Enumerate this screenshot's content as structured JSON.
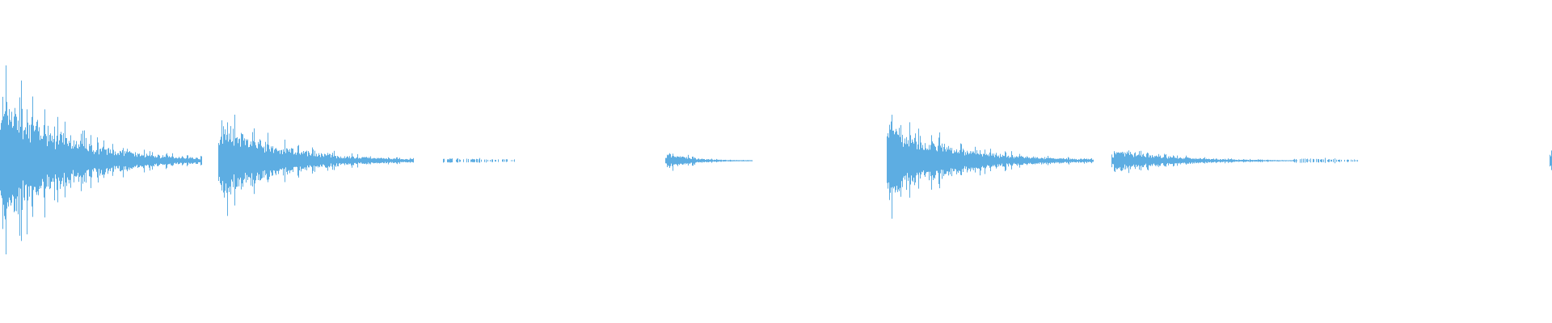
{
  "chart_data": {
    "type": "waveform",
    "title": "",
    "xlabel": "",
    "ylabel": "",
    "ylim": [
      -1,
      1
    ],
    "grid": false,
    "legend": "none",
    "color": "#5dade2",
    "background": "#ffffff",
    "events": [
      {
        "peak_amplitude": 0.6,
        "decay": "exponential"
      },
      {
        "peak_amplitude": 0.34,
        "decay": "exponential"
      },
      {
        "peak_amplitude": 0.02,
        "decay": "sparse"
      },
      {
        "peak_amplitude": 0.07,
        "decay": "exponential"
      },
      {
        "peak_amplitude": 0.34,
        "decay": "exponential"
      },
      {
        "peak_amplitude": 0.1,
        "decay": "exponential"
      },
      {
        "peak_amplitude": 0.02,
        "decay": "sparse"
      },
      {
        "peak_amplitude": 0.06,
        "decay": "click"
      }
    ]
  }
}
